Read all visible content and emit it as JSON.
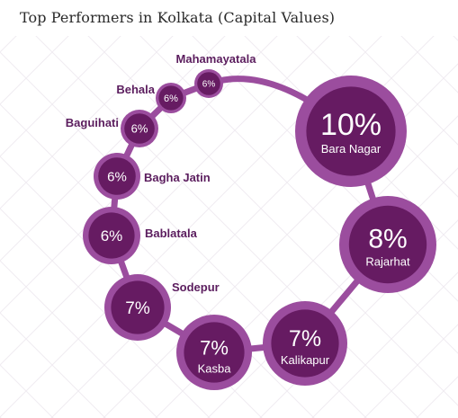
{
  "title": "Top Performers in Kolkata (Capital Values)",
  "colors": {
    "ring": "#9b4d9e",
    "outer": "#9b4d9e",
    "inner": "#661b62",
    "label": "#5b1d5e",
    "grid": "#ece8ee"
  },
  "chart_data": {
    "type": "bubble",
    "title": "Top Performers in Kolkata (Capital Values)",
    "unit": "%",
    "categories": [
      "Bara Nagar",
      "Rajarhat",
      "Kalikapur",
      "Kasba",
      "Sodepur",
      "Bablatala",
      "Bagha Jatin",
      "Baguihati",
      "Behala",
      "Mahamayatala"
    ],
    "values": [
      10,
      8,
      7,
      7,
      7,
      6,
      6,
      6,
      6,
      6
    ],
    "value_labels": [
      "10%",
      "8%",
      "7%",
      "7%",
      "7%",
      "6%",
      "6%",
      "6%",
      "6%",
      "6%"
    ]
  }
}
